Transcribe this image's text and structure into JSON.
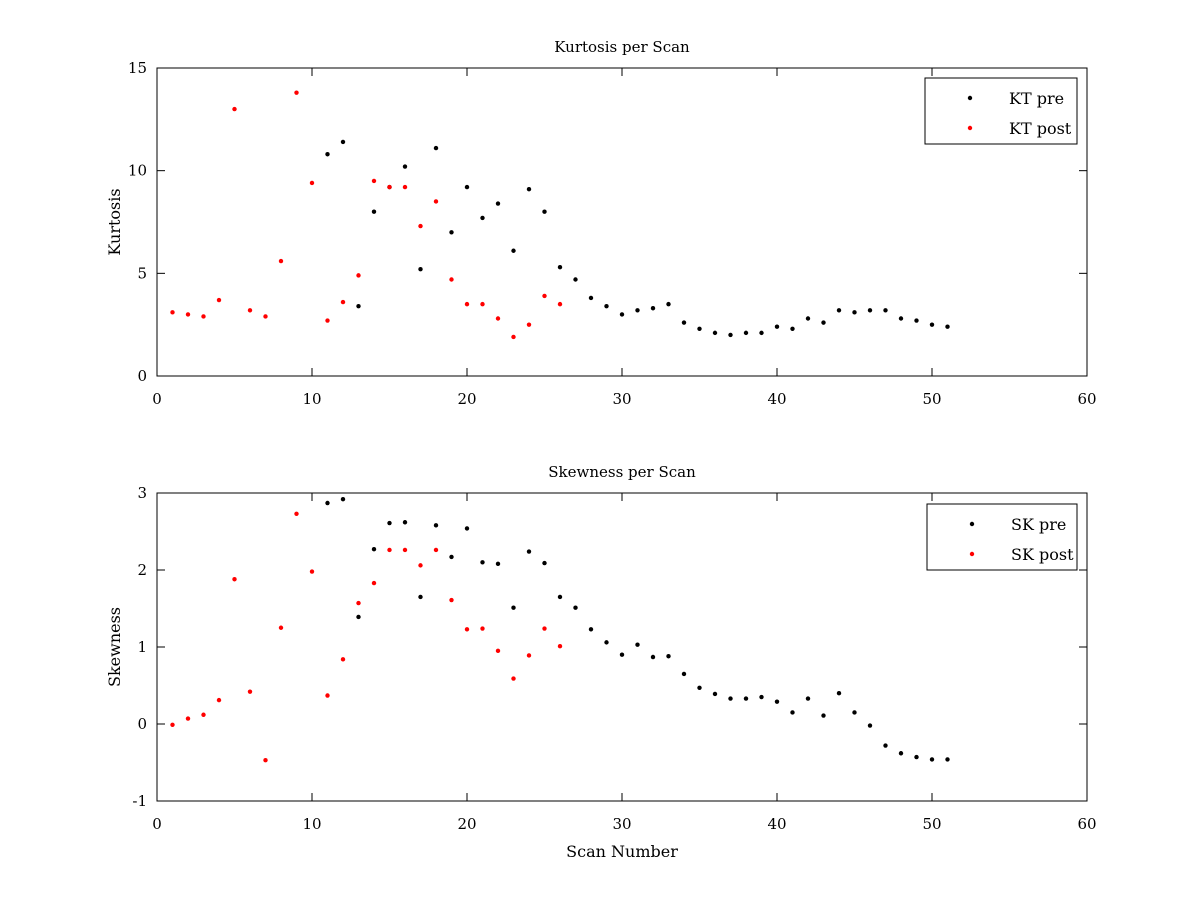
{
  "chart_data": [
    {
      "type": "scatter",
      "title": "Kurtosis per Scan",
      "xlabel": "",
      "ylabel": "Kurtosis",
      "xlim": [
        0,
        60
      ],
      "ylim": [
        0,
        15
      ],
      "xticks": [
        0,
        10,
        20,
        30,
        40,
        50,
        60
      ],
      "yticks": [
        0,
        5,
        10,
        15
      ],
      "grid": false,
      "legend_position": "top-right",
      "series": [
        {
          "name": "KT pre",
          "color": "#000000",
          "x": [
            11,
            12,
            13,
            14,
            15,
            16,
            17,
            18,
            19,
            20,
            21,
            22,
            23,
            24,
            25,
            26,
            27,
            28,
            29,
            30,
            31,
            32,
            33,
            34,
            35,
            36,
            37,
            38,
            39,
            40,
            41,
            42,
            43,
            44,
            45,
            46,
            47,
            48,
            49,
            50,
            51
          ],
          "y": [
            10.8,
            11.4,
            3.4,
            8.0,
            9.2,
            10.2,
            5.2,
            11.1,
            7.0,
            9.2,
            7.7,
            8.4,
            6.1,
            9.1,
            8.0,
            5.3,
            4.7,
            3.8,
            3.4,
            3.0,
            3.2,
            3.3,
            3.5,
            2.6,
            2.3,
            2.1,
            2.0,
            2.1,
            2.1,
            2.4,
            2.3,
            2.8,
            2.6,
            3.2,
            3.1,
            3.2,
            3.2,
            2.8,
            2.7,
            2.5,
            2.4
          ]
        },
        {
          "name": "KT post",
          "color": "#ff0000",
          "x": [
            1,
            2,
            3,
            4,
            5,
            6,
            7,
            8,
            9,
            10,
            11,
            12,
            13,
            14,
            15,
            16,
            17,
            18,
            19,
            20,
            21,
            22,
            23,
            24,
            25,
            26
          ],
          "y": [
            3.1,
            3.0,
            2.9,
            3.7,
            13.0,
            3.2,
            2.9,
            5.6,
            13.8,
            9.4,
            2.7,
            3.6,
            4.9,
            9.5,
            9.2,
            9.2,
            7.3,
            8.5,
            4.7,
            3.5,
            3.5,
            2.8,
            1.9,
            2.5,
            3.9,
            3.5
          ]
        }
      ]
    },
    {
      "type": "scatter",
      "title": "Skewness per Scan",
      "xlabel": "Scan Number",
      "ylabel": "Skewness",
      "xlim": [
        0,
        60
      ],
      "ylim": [
        -1,
        3
      ],
      "xticks": [
        0,
        10,
        20,
        30,
        40,
        50,
        60
      ],
      "yticks": [
        -1,
        0,
        1,
        2,
        3
      ],
      "grid": false,
      "legend_position": "top-right",
      "series": [
        {
          "name": "SK pre",
          "color": "#000000",
          "x": [
            11,
            12,
            13,
            14,
            15,
            16,
            17,
            18,
            19,
            20,
            21,
            22,
            23,
            24,
            25,
            26,
            27,
            28,
            29,
            30,
            31,
            32,
            33,
            34,
            35,
            36,
            37,
            38,
            39,
            40,
            41,
            42,
            43,
            44,
            45,
            46,
            47,
            48,
            49,
            50,
            51
          ],
          "y": [
            2.87,
            2.92,
            1.39,
            2.27,
            2.61,
            2.62,
            1.65,
            2.58,
            2.17,
            2.54,
            2.1,
            2.08,
            1.51,
            2.24,
            2.09,
            1.65,
            1.51,
            1.23,
            1.06,
            0.9,
            1.03,
            0.87,
            0.88,
            0.65,
            0.47,
            0.39,
            0.33,
            0.33,
            0.35,
            0.29,
            0.15,
            0.33,
            0.11,
            0.4,
            0.15,
            -0.02,
            -0.28,
            -0.38,
            -0.43,
            -0.46,
            -0.46
          ]
        },
        {
          "name": "SK post",
          "color": "#ff0000",
          "x": [
            1,
            2,
            3,
            4,
            5,
            6,
            7,
            8,
            9,
            10,
            11,
            12,
            13,
            14,
            15,
            16,
            17,
            18,
            19,
            20,
            21,
            22,
            23,
            24,
            25,
            26
          ],
          "y": [
            -0.01,
            0.07,
            0.12,
            0.31,
            1.88,
            0.42,
            -0.47,
            1.25,
            2.73,
            1.98,
            0.37,
            0.84,
            1.57,
            1.83,
            2.26,
            2.26,
            2.06,
            2.26,
            1.61,
            1.23,
            1.24,
            0.95,
            0.59,
            0.89,
            1.24,
            1.01
          ]
        }
      ]
    }
  ]
}
